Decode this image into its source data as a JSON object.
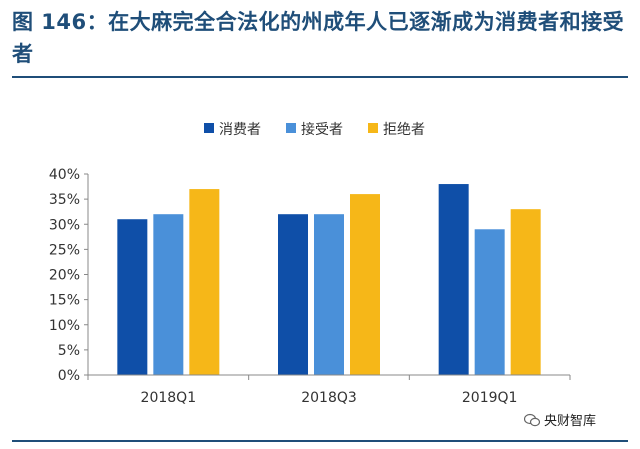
{
  "title": "图 146：在大麻完全合法化的州成年人已逐渐成为消费者和接受者",
  "watermark": "央财智库",
  "chart_data": {
    "type": "bar",
    "categories": [
      "2018Q1",
      "2018Q3",
      "2019Q1"
    ],
    "series": [
      {
        "name": "消费者",
        "color": "#0F4FA8",
        "values": [
          31,
          32,
          38
        ]
      },
      {
        "name": "接受者",
        "color": "#4A90D9",
        "values": [
          32,
          32,
          29
        ]
      },
      {
        "name": "拒绝者",
        "color": "#F6B718",
        "values": [
          37,
          36,
          33
        ]
      }
    ],
    "ylim": [
      0,
      40
    ],
    "yticks": [
      "0%",
      "5%",
      "10%",
      "15%",
      "20%",
      "25%",
      "30%",
      "35%",
      "40%"
    ],
    "legend_position": "top",
    "grid": false,
    "title": "",
    "xlabel": "",
    "ylabel": ""
  }
}
